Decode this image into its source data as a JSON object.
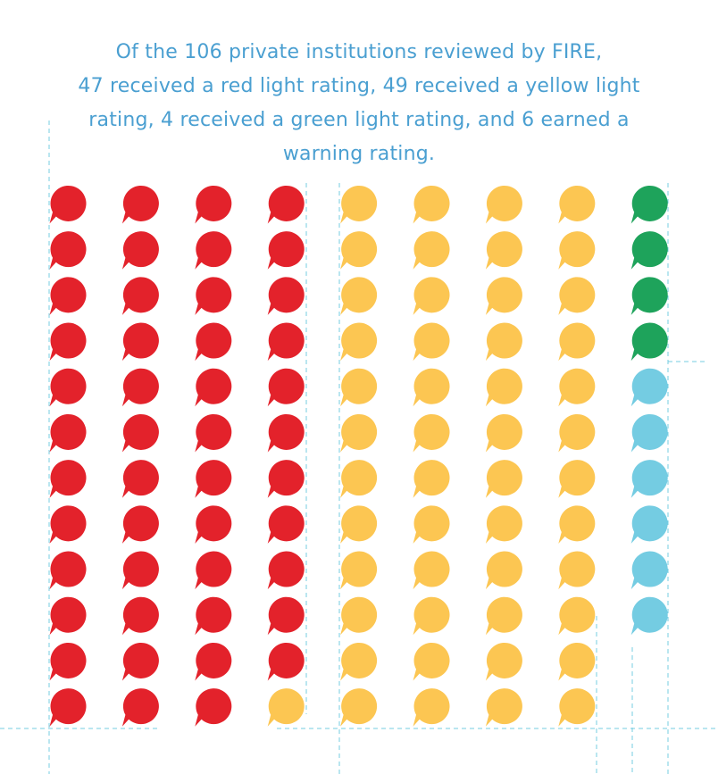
{
  "caption": {
    "lines": [
      "Of the 106 private institutions reviewed by FIRE,",
      "47 received a red light rating, 49 received a yellow light",
      "rating, 4 received a green light rating, and 6 earned a",
      "warning rating."
    ]
  },
  "chart_data": {
    "type": "waffle",
    "title": "Of the 106 private institutions reviewed by FIRE, 47 received a red light rating, 49 received a yellow light rating, 4 received a green light rating, and 6 earned a warning rating.",
    "total": 106,
    "columns": 9,
    "rows": 12,
    "fill_order": "column-major, top to bottom",
    "icon": "speech-bubble-icon",
    "categories": [
      {
        "key": "red",
        "count": 47,
        "color": "#e3222b"
      },
      {
        "key": "yellow",
        "count": 49,
        "color": "#fcc652"
      },
      {
        "key": "green",
        "count": 4,
        "color": "#1ea35b"
      },
      {
        "key": "warning",
        "count": 6,
        "color": "#74cce2"
      }
    ]
  }
}
